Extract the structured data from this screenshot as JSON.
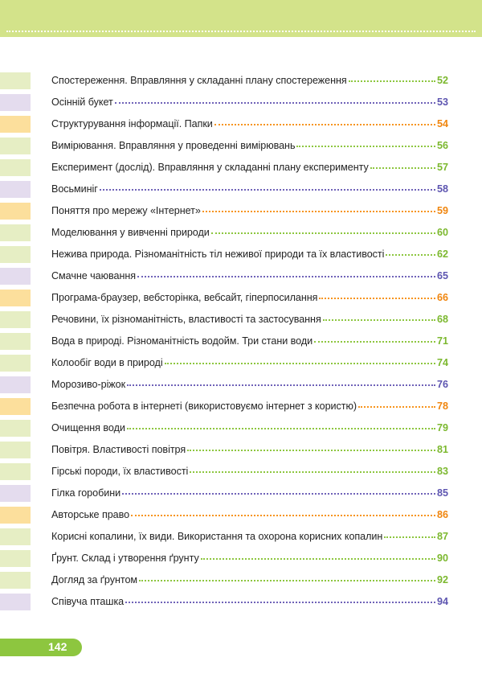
{
  "colors": {
    "green": "#8dc63f",
    "purple": "#6f62b8",
    "orange": "#f7941d",
    "header_band": "#d3e38a"
  },
  "toc": {
    "items": [
      {
        "title": "Спостереження. Вправляння у складанні плану спостереження",
        "page": "52",
        "color": "green"
      },
      {
        "title": "Осінній букет",
        "page": "53",
        "color": "purple"
      },
      {
        "title": "Структурування інформації. Папки",
        "page": "54",
        "color": "orange"
      },
      {
        "title": "Вимірювання. Вправляння у проведенні вимірювань",
        "page": "56",
        "color": "green"
      },
      {
        "title": "Експеримент (дослід). Вправляння у складанні плану експерименту",
        "page": "57",
        "color": "green"
      },
      {
        "title": "Восьминіг",
        "page": "58",
        "color": "purple"
      },
      {
        "title": "Поняття про мережу «Інтернет»",
        "page": "59",
        "color": "orange"
      },
      {
        "title": "Моделювання у вивченні природи",
        "page": "60",
        "color": "green"
      },
      {
        "title": "Нежива природа. Різноманітність тіл неживої природи та їх властивості",
        "page": "62",
        "color": "green"
      },
      {
        "title": "Смачне чаювання",
        "page": "65",
        "color": "purple"
      },
      {
        "title": "Програма-браузер, вебсторінка, вебсайт, гіперпосилання",
        "page": "66",
        "color": "orange"
      },
      {
        "title": "Речовини, їх різноманітність, властивості та застосування",
        "page": "68",
        "color": "green"
      },
      {
        "title": "Вода в природі. Різноманітність водойм. Три стани води",
        "page": "71",
        "color": "green"
      },
      {
        "title": "Колообіг води в природі",
        "page": "74",
        "color": "green"
      },
      {
        "title": "Морозиво-ріжок",
        "page": "76",
        "color": "purple"
      },
      {
        "title": "Безпечна робота в інтернеті (використовуємо інтернет з користю)",
        "page": "78",
        "color": "orange"
      },
      {
        "title": "Очищення води",
        "page": "79",
        "color": "green"
      },
      {
        "title": "Повітря. Властивості повітря",
        "page": "81",
        "color": "green"
      },
      {
        "title": "Гірські породи, їх властивості",
        "page": "83",
        "color": "green"
      },
      {
        "title": "Гілка горобини",
        "page": "85",
        "color": "purple"
      },
      {
        "title": "Авторське право",
        "page": "86",
        "color": "orange"
      },
      {
        "title": "Корисні копалини, їх види. Використання та охорона корисних копалин",
        "page": "87",
        "color": "green"
      },
      {
        "title": "Ґрунт. Склад і утворення ґрунту",
        "page": "90",
        "color": "green"
      },
      {
        "title": "Догляд за ґрунтом",
        "page": "92",
        "color": "green"
      },
      {
        "title": "Співуча пташка",
        "page": "94",
        "color": "purple"
      }
    ]
  },
  "footer": {
    "page_number": "142"
  }
}
